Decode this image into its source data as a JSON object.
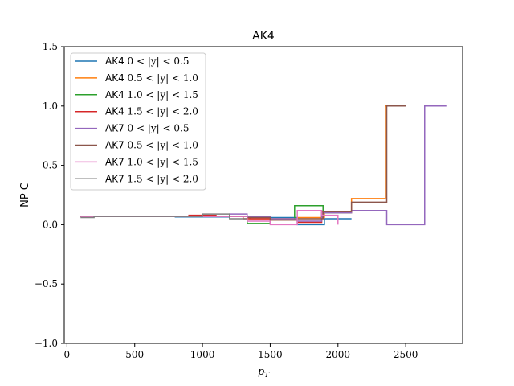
{
  "chart_data": {
    "type": "line",
    "drawstyle": "steps",
    "title": "AK4",
    "xlabel": "p_T",
    "ylabel": "NP C",
    "xlim": [
      -20,
      2920
    ],
    "ylim": [
      -1.0,
      1.5
    ],
    "xticks": [
      0,
      500,
      1000,
      1500,
      2000,
      2500
    ],
    "yticks": [
      -1.0,
      -0.5,
      0.0,
      0.5,
      1.0,
      1.5
    ],
    "ytick_labels": [
      "−1.0",
      "−0.5",
      "0.0",
      "0.5",
      "1.0",
      "1.5"
    ],
    "grid": false,
    "legend_position": "upper-left",
    "series": [
      {
        "name": "AK4 0 < |y| < 0.5",
        "color": "#1f77b4",
        "x": [
          100,
          200,
          400,
          600,
          800,
          1000,
          1200,
          1350,
          1500,
          1700,
          1900,
          2100
        ],
        "y": [
          0.07,
          0.07,
          0.07,
          0.07,
          0.065,
          0.065,
          0.07,
          0.07,
          0.06,
          0.0,
          0.05,
          0.05
        ]
      },
      {
        "name": "AK4 0.5 < |y| < 1.0",
        "color": "#ff7f0e",
        "x": [
          100,
          200,
          400,
          600,
          800,
          1000,
          1200,
          1350,
          1500,
          1700,
          1900,
          2100,
          2350,
          2500
        ],
        "y": [
          0.07,
          0.07,
          0.07,
          0.07,
          0.07,
          0.07,
          0.07,
          0.05,
          0.05,
          0.06,
          0.1,
          0.22,
          1.0,
          1.0
        ]
      },
      {
        "name": "AK4 1.0 < |y| < 1.5",
        "color": "#2ca02c",
        "x": [
          100,
          200,
          400,
          600,
          800,
          1000,
          1200,
          1330,
          1500,
          1680,
          1890,
          2100
        ],
        "y": [
          0.07,
          0.07,
          0.07,
          0.07,
          0.07,
          0.07,
          0.07,
          0.01,
          0.04,
          0.16,
          0.1,
          0.1
        ]
      },
      {
        "name": "AK4 1.5 < |y| < 2.0",
        "color": "#d62728",
        "x": [
          100,
          200,
          400,
          600,
          900,
          1100,
          1300,
          1500,
          1700,
          1880,
          2100
        ],
        "y": [
          0.07,
          0.07,
          0.07,
          0.07,
          0.08,
          0.07,
          0.05,
          0.04,
          0.02,
          0.11,
          0.11
        ]
      },
      {
        "name": "AK7 0 < |y| < 0.5",
        "color": "#9467bd",
        "x": [
          100,
          200,
          400,
          600,
          800,
          1000,
          1200,
          1330,
          1500,
          1700,
          1880,
          2100,
          2360,
          2640,
          2800
        ],
        "y": [
          0.07,
          0.07,
          0.07,
          0.07,
          0.07,
          0.07,
          0.09,
          0.07,
          0.05,
          0.03,
          0.1,
          0.12,
          0.0,
          1.0,
          1.0
        ]
      },
      {
        "name": "AK7 0.5 < |y| < 1.0",
        "color": "#8c564b",
        "x": [
          100,
          200,
          400,
          600,
          800,
          1000,
          1200,
          1330,
          1500,
          1700,
          1890,
          2100,
          2360,
          2500
        ],
        "y": [
          0.07,
          0.07,
          0.07,
          0.07,
          0.07,
          0.07,
          0.07,
          0.06,
          0.04,
          0.05,
          0.11,
          0.19,
          1.0,
          1.0
        ]
      },
      {
        "name": "AK7 1.0 < |y| < 1.5",
        "color": "#e377c2",
        "x": [
          100,
          200,
          400,
          600,
          800,
          1000,
          1200,
          1330,
          1500,
          1700,
          1880,
          2000
        ],
        "y": [
          0.07,
          0.07,
          0.07,
          0.07,
          0.07,
          0.07,
          0.07,
          0.03,
          0.0,
          0.12,
          0.08,
          0.0
        ]
      },
      {
        "name": "AK7 1.5 < |y| < 2.0",
        "color": "#7f7f7f",
        "x": [
          100,
          200,
          400,
          600,
          800,
          1000,
          1200,
          1330
        ],
        "y": [
          0.06,
          0.07,
          0.07,
          0.07,
          0.07,
          0.09,
          0.05,
          0.05
        ]
      }
    ]
  }
}
